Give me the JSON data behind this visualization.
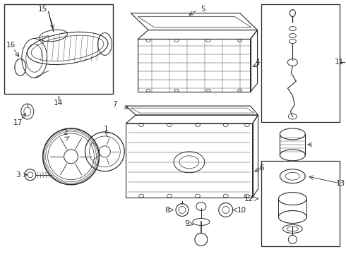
{
  "bg_color": "#ffffff",
  "line_color": "#2a2a2a",
  "fig_w": 4.9,
  "fig_h": 3.6,
  "dpi": 100,
  "label_fs": 7.5
}
